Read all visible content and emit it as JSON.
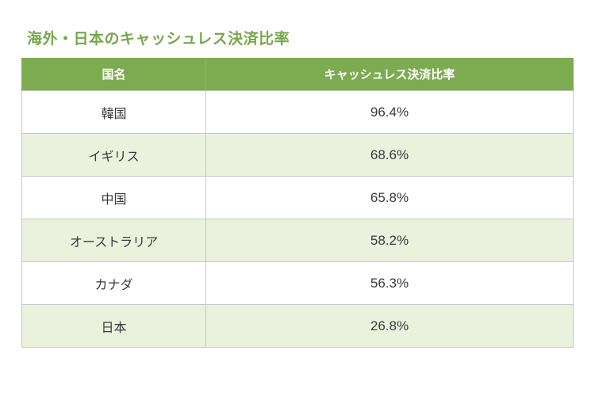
{
  "title": "海外・日本のキャッシュレス決済比率",
  "table": {
    "headers": {
      "country": "国名",
      "rate": "キャッシュレス決済比率"
    },
    "rows": [
      {
        "country": "韓国",
        "rate": "96.4%"
      },
      {
        "country": "イギリス",
        "rate": "68.6%"
      },
      {
        "country": "中国",
        "rate": "65.8%"
      },
      {
        "country": "オーストラリア",
        "rate": "58.2%"
      },
      {
        "country": "カナダ",
        "rate": "56.3%"
      },
      {
        "country": "日本",
        "rate": "26.8%"
      }
    ]
  },
  "colors": {
    "title": "#76a84a",
    "header_bg": "#7dab50",
    "header_text": "#ffffff",
    "row_alt_bg": "#eaf2de",
    "row_bg": "#ffffff",
    "border": "#c8c8c8",
    "text": "#3a3a3a"
  }
}
